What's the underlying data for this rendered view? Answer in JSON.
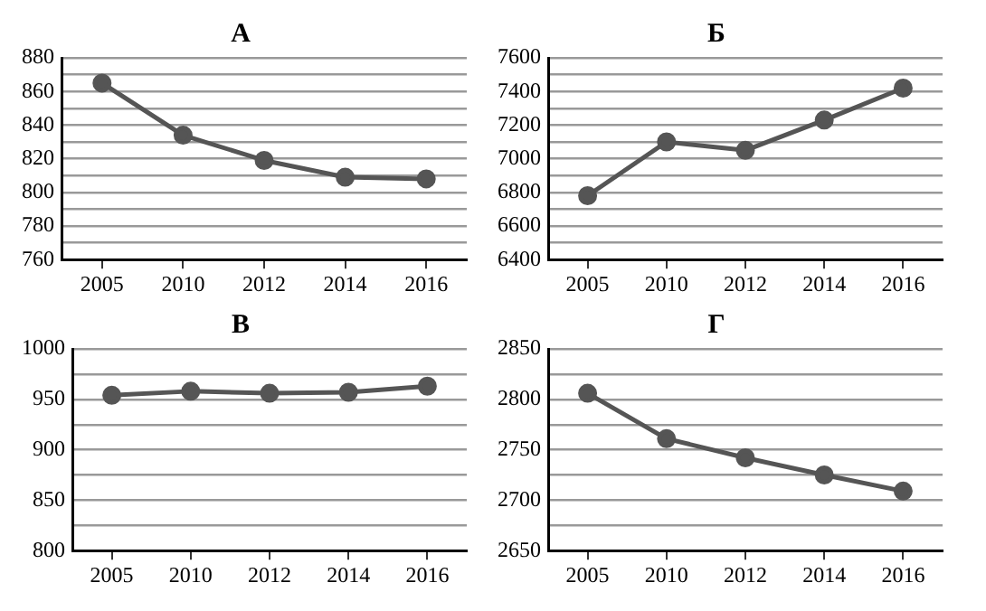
{
  "chart_data": [
    {
      "type": "line",
      "title": "А",
      "categories": [
        "2005",
        "2010",
        "2012",
        "2014",
        "2016"
      ],
      "series": [
        {
          "color": "#555555",
          "values": [
            865,
            834,
            819,
            809,
            808
          ]
        }
      ],
      "ylim": [
        760,
        880
      ],
      "yticks": [
        760,
        {
          "value": 770,
          "label": null
        },
        780,
        {
          "value": 790,
          "label": null
        },
        800,
        {
          "value": 810,
          "label": null
        },
        820,
        {
          "value": 830,
          "label": null
        },
        840,
        {
          "value": 850,
          "label": null
        },
        860,
        {
          "value": 870,
          "label": null
        },
        880
      ],
      "grid": "y",
      "marker": "circle",
      "line_style": "solid",
      "legend": false
    },
    {
      "type": "line",
      "title": "Б",
      "categories": [
        "2005",
        "2010",
        "2012",
        "2014",
        "2016"
      ],
      "series": [
        {
          "color": "#555555",
          "values": [
            6780,
            7100,
            7050,
            7230,
            7420
          ]
        }
      ],
      "ylim": [
        6400,
        7600
      ],
      "yticks": [
        6400,
        {
          "value": 6500,
          "label": null
        },
        6600,
        {
          "value": 6700,
          "label": null
        },
        6800,
        {
          "value": 6900,
          "label": null
        },
        7000,
        {
          "value": 7100,
          "label": null
        },
        7200,
        {
          "value": 7300,
          "label": null
        },
        7400,
        {
          "value": 7500,
          "label": null
        },
        7600
      ],
      "grid": "y",
      "marker": "circle",
      "line_style": "solid",
      "legend": false
    },
    {
      "type": "line",
      "title": "В",
      "categories": [
        "2005",
        "2010",
        "2012",
        "2014",
        "2016"
      ],
      "series": [
        {
          "color": "#555555",
          "values": [
            954,
            958,
            956,
            957,
            963
          ]
        }
      ],
      "ylim": [
        800,
        1000
      ],
      "yticks": [
        800,
        {
          "value": 825,
          "label": null
        },
        850,
        {
          "value": 875,
          "label": null
        },
        900,
        {
          "value": 925,
          "label": null
        },
        950,
        {
          "value": 975,
          "label": null
        },
        1000
      ],
      "grid": "y",
      "marker": "circle",
      "line_style": "solid",
      "legend": false
    },
    {
      "type": "line",
      "title": "Г",
      "categories": [
        "2005",
        "2010",
        "2012",
        "2014",
        "2016"
      ],
      "series": [
        {
          "color": "#555555",
          "values": [
            2806,
            2761,
            2742,
            2725,
            2709
          ]
        }
      ],
      "ylim": [
        2650,
        2850
      ],
      "yticks": [
        2650,
        {
          "value": 2675,
          "label": null
        },
        2700,
        {
          "value": 2725,
          "label": null
        },
        2750,
        {
          "value": 2775,
          "label": null
        },
        2800,
        {
          "value": 2825,
          "label": null
        },
        2850
      ],
      "grid": "y",
      "marker": "circle",
      "line_style": "solid",
      "legend": false
    }
  ]
}
